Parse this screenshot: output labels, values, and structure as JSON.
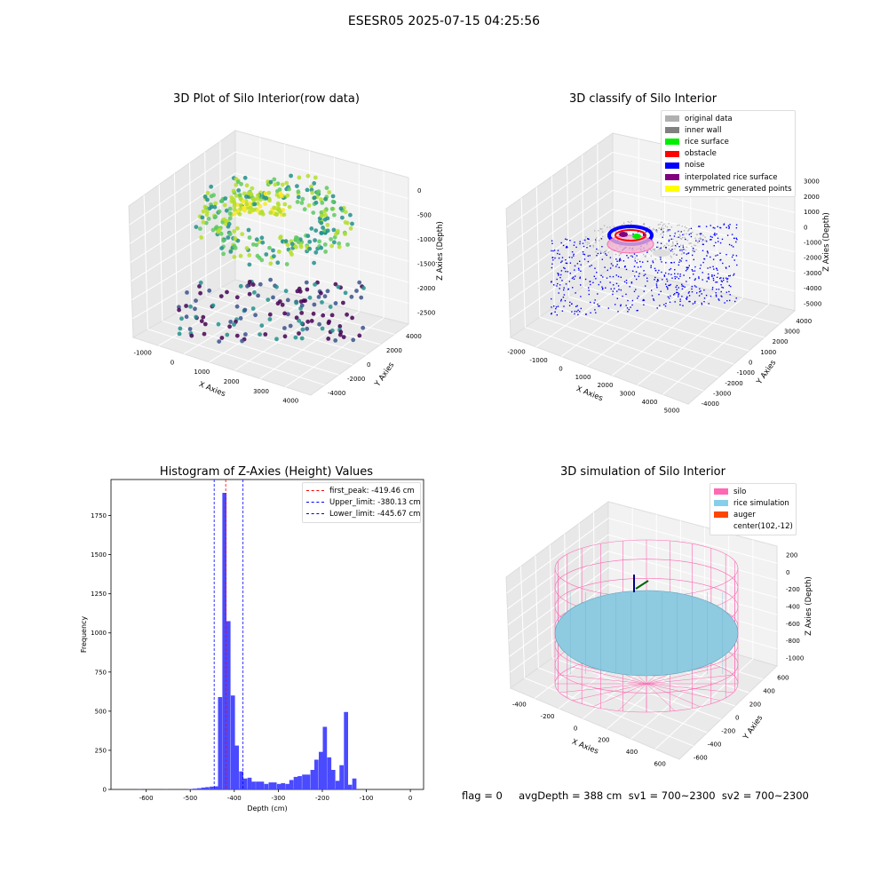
{
  "figure": {
    "title": "ESESR05 2025-07-15 04:25:56",
    "status_line": "flag = 0     avgDepth = 388 cm  sv1 = 700~2300  sv2 = 700~2300"
  },
  "chart_data": [
    {
      "type": "scatter3d",
      "title": "3D Plot of Silo Interior(row data)",
      "xlabel": "X Axies",
      "ylabel": "Y Axies",
      "zlabel": "Z Axies (Depth)",
      "x_ticks": [
        "-1000",
        "0",
        "1000",
        "2000",
        "3000",
        "4000"
      ],
      "y_ticks": [
        "-4000",
        "-2000",
        "0",
        "2000",
        "4000"
      ],
      "z_ticks": [
        "0",
        "-500",
        "-1000",
        "-1500",
        "-2000",
        "-2500"
      ],
      "colormap": "viridis",
      "grid": true
    },
    {
      "type": "scatter3d",
      "title": "3D classify of Silo Interior",
      "xlabel": "X Axies",
      "ylabel": "Y Axies",
      "zlabel": "Z Axies (Depth)",
      "x_ticks": [
        "-2000",
        "-1000",
        "0",
        "1000",
        "2000",
        "3000",
        "4000",
        "5000"
      ],
      "y_ticks": [
        "-4000",
        "-3000",
        "-2000",
        "-1000",
        "0",
        "1000",
        "2000",
        "3000",
        "4000"
      ],
      "z_ticks": [
        "3000",
        "2000",
        "1000",
        "0",
        "-1000",
        "-2000",
        "-3000",
        "-4000",
        "-5000"
      ],
      "legend_position": "top-right",
      "legend": [
        {
          "label": "original data",
          "color": "#b0b0b0"
        },
        {
          "label": "inner wall",
          "color": "#808080"
        },
        {
          "label": "rice surface",
          "color": "#00ee00"
        },
        {
          "label": "obstacle",
          "color": "#ff0000"
        },
        {
          "label": "noise",
          "color": "#0000ff"
        },
        {
          "label": "interpolated rice surface",
          "color": "#800080"
        },
        {
          "label": "symmetric generated points",
          "color": "#ffff00"
        }
      ],
      "grid": true
    },
    {
      "type": "bar",
      "subtype": "histogram",
      "title": "Histogram of Z-Axies (Height) Values",
      "xlabel": "Depth (cm)",
      "ylabel": "Frequency",
      "xlim": [
        -680,
        30
      ],
      "ylim": [
        0,
        1980
      ],
      "x_ticks": [
        -600,
        -500,
        -400,
        -300,
        -200,
        -100,
        0
      ],
      "y_ticks": [
        0,
        250,
        500,
        750,
        1000,
        1250,
        1500,
        1750
      ],
      "bar_color": "#4a4aff",
      "bin_width": 9.5,
      "bins": [
        [
          -505,
          2
        ],
        [
          -495,
          5
        ],
        [
          -485,
          8
        ],
        [
          -475,
          12
        ],
        [
          -466,
          15
        ],
        [
          -456,
          18
        ],
        [
          -446,
          20
        ],
        [
          -437,
          590
        ],
        [
          -427,
          1895
        ],
        [
          -418,
          1075
        ],
        [
          -408,
          600
        ],
        [
          -399,
          280
        ],
        [
          -389,
          115
        ],
        [
          -380,
          70
        ],
        [
          -370,
          75
        ],
        [
          -361,
          50
        ],
        [
          -351,
          50
        ],
        [
          -342,
          50
        ],
        [
          -332,
          35
        ],
        [
          -322,
          45
        ],
        [
          -313,
          45
        ],
        [
          -303,
          35
        ],
        [
          -294,
          40
        ],
        [
          -284,
          35
        ],
        [
          -275,
          60
        ],
        [
          -265,
          80
        ],
        [
          -256,
          85
        ],
        [
          -246,
          95
        ],
        [
          -237,
          95
        ],
        [
          -227,
          125
        ],
        [
          -218,
          190
        ],
        [
          -208,
          240
        ],
        [
          -199,
          400
        ],
        [
          -189,
          205
        ],
        [
          -180,
          125
        ],
        [
          -170,
          55
        ],
        [
          -161,
          155
        ],
        [
          -151,
          495
        ],
        [
          -142,
          30
        ],
        [
          -132,
          70
        ],
        [
          -620,
          1
        ],
        [
          -560,
          1
        ]
      ],
      "reference_lines": [
        {
          "label": "first_peak: -419.46 cm",
          "value": -419.46,
          "color": "#ff0000"
        },
        {
          "label": "Upper_limit: -380.13 cm",
          "value": -380.13,
          "color": "#0000ff"
        },
        {
          "label": "Lower_limit: -445.67 cm",
          "value": -445.67,
          "color": "#0000ff"
        }
      ],
      "legend_position": "top-right",
      "grid": false
    },
    {
      "type": "surface3d",
      "title": "3D simulation of Silo Interior",
      "xlabel": "X Axies",
      "ylabel": "Y Axies",
      "zlabel": "Z Axies (Depth)",
      "x_ticks": [
        "-400",
        "-200",
        "0",
        "200",
        "400",
        "600"
      ],
      "y_ticks": [
        "-600",
        "-400",
        "-200",
        "0",
        "200",
        "400",
        "600"
      ],
      "z_ticks": [
        "200",
        "0",
        "-200",
        "-400",
        "-600",
        "-800",
        "-1000"
      ],
      "legend_position": "top-right",
      "legend": [
        {
          "label": "silo",
          "color": "#ff69b4"
        },
        {
          "label": "rice simulation",
          "color": "#87ceeb"
        },
        {
          "label": "auger",
          "color": "#ff4500"
        },
        {
          "label": "center(102,-12)",
          "color": ""
        }
      ],
      "grid": true
    }
  ]
}
